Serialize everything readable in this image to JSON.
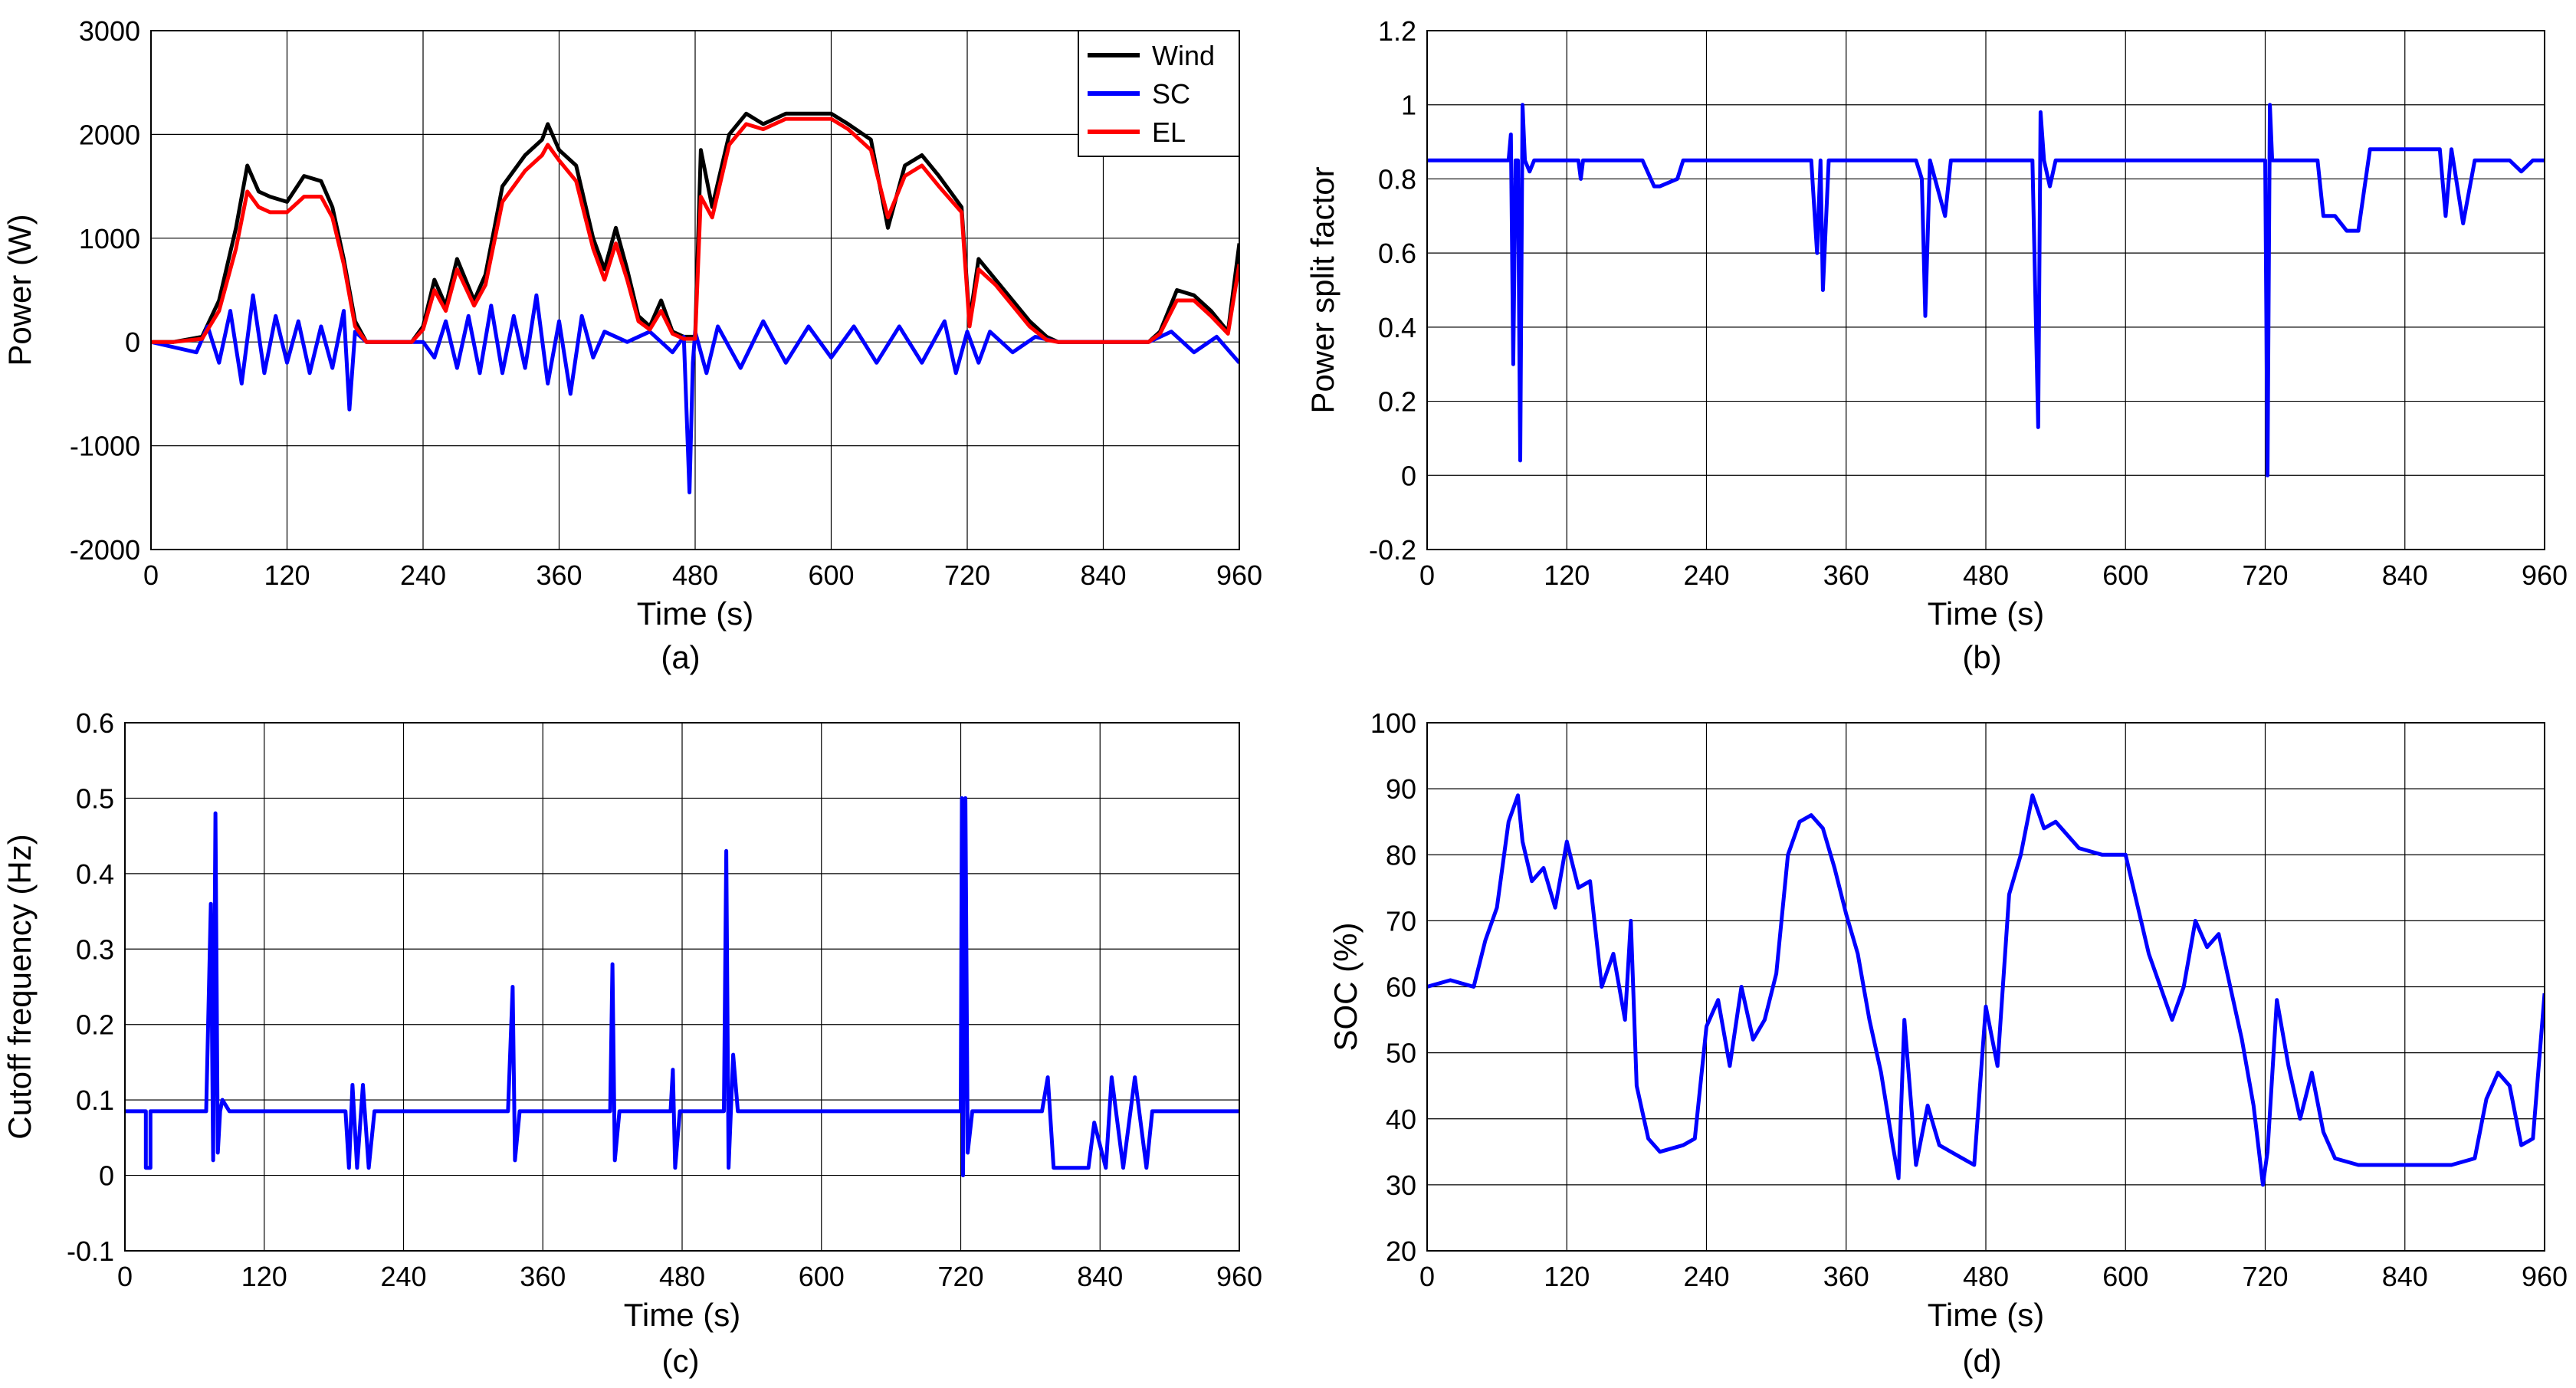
{
  "figure": {
    "background": "#ffffff"
  },
  "chart_data": [
    {
      "id": "a",
      "type": "line",
      "caption": "(a)",
      "xlabel": "Time (s)",
      "ylabel": "Power (W)",
      "xlim": [
        0,
        960
      ],
      "ylim": [
        -2000,
        3000
      ],
      "xticks": [
        0,
        120,
        240,
        360,
        480,
        600,
        720,
        840,
        960
      ],
      "yticks": [
        -2000,
        -1000,
        0,
        1000,
        2000,
        3000
      ],
      "grid": true,
      "legend": {
        "position": "top-right"
      },
      "series": [
        {
          "name": "Wind",
          "color": "#000000",
          "x": [
            0,
            20,
            45,
            60,
            75,
            85,
            95,
            105,
            120,
            135,
            150,
            160,
            170,
            180,
            190,
            200,
            230,
            240,
            250,
            260,
            270,
            285,
            295,
            310,
            330,
            345,
            350,
            360,
            375,
            390,
            400,
            410,
            420,
            430,
            440,
            450,
            460,
            470,
            480,
            485,
            495,
            510,
            525,
            540,
            560,
            580,
            600,
            615,
            635,
            650,
            665,
            680,
            695,
            715,
            722,
            730,
            745,
            760,
            775,
            790,
            800,
            820,
            880,
            890,
            905,
            920,
            935,
            950,
            960
          ],
          "y": [
            0,
            0,
            50,
            400,
            1100,
            1700,
            1450,
            1400,
            1350,
            1600,
            1550,
            1300,
            800,
            200,
            0,
            0,
            0,
            150,
            600,
            350,
            800,
            400,
            650,
            1500,
            1800,
            1950,
            2100,
            1850,
            1700,
            1000,
            700,
            1100,
            700,
            250,
            150,
            400,
            100,
            50,
            50,
            1850,
            1300,
            2000,
            2200,
            2100,
            2200,
            2200,
            2200,
            2100,
            1950,
            1100,
            1700,
            1800,
            1600,
            1300,
            200,
            800,
            600,
            400,
            200,
            50,
            0,
            0,
            0,
            100,
            500,
            450,
            300,
            100,
            950
          ]
        },
        {
          "name": "SC",
          "color": "#0000ff",
          "x": [
            0,
            20,
            40,
            50,
            60,
            70,
            80,
            90,
            100,
            110,
            120,
            130,
            140,
            150,
            160,
            170,
            175,
            180,
            190,
            240,
            250,
            260,
            270,
            280,
            290,
            300,
            310,
            320,
            330,
            340,
            350,
            360,
            370,
            380,
            390,
            400,
            420,
            440,
            460,
            470,
            475,
            478,
            480,
            490,
            500,
            520,
            540,
            560,
            580,
            600,
            620,
            640,
            660,
            680,
            700,
            710,
            720,
            730,
            740,
            760,
            780,
            800,
            880,
            900,
            920,
            940,
            960
          ],
          "y": [
            0,
            -50,
            -100,
            150,
            -200,
            300,
            -400,
            450,
            -300,
            250,
            -200,
            200,
            -300,
            150,
            -250,
            300,
            -650,
            100,
            0,
            0,
            -150,
            200,
            -250,
            250,
            -300,
            350,
            -300,
            250,
            -250,
            450,
            -400,
            200,
            -500,
            250,
            -150,
            100,
            0,
            100,
            -100,
            50,
            -1450,
            -200,
            100,
            -300,
            150,
            -250,
            200,
            -200,
            150,
            -150,
            150,
            -200,
            150,
            -200,
            200,
            -300,
            100,
            -200,
            100,
            -100,
            50,
            0,
            0,
            100,
            -100,
            50,
            -200
          ]
        },
        {
          "name": "EL",
          "color": "#ff0000",
          "x": [
            0,
            20,
            45,
            60,
            75,
            85,
            95,
            105,
            120,
            135,
            150,
            160,
            170,
            180,
            190,
            200,
            230,
            240,
            250,
            260,
            270,
            285,
            295,
            310,
            330,
            345,
            350,
            360,
            375,
            390,
            400,
            410,
            420,
            430,
            440,
            450,
            460,
            470,
            480,
            485,
            495,
            510,
            525,
            540,
            560,
            580,
            600,
            615,
            635,
            650,
            665,
            680,
            695,
            715,
            722,
            730,
            745,
            760,
            775,
            790,
            800,
            820,
            880,
            890,
            905,
            920,
            935,
            950,
            960
          ],
          "y": [
            0,
            0,
            30,
            300,
            900,
            1450,
            1300,
            1250,
            1250,
            1400,
            1400,
            1200,
            750,
            150,
            0,
            0,
            0,
            120,
            500,
            300,
            700,
            350,
            550,
            1350,
            1650,
            1800,
            1900,
            1750,
            1550,
            900,
            600,
            950,
            600,
            200,
            120,
            300,
            80,
            30,
            30,
            1400,
            1200,
            1900,
            2100,
            2050,
            2150,
            2150,
            2150,
            2050,
            1850,
            1200,
            1600,
            1700,
            1500,
            1250,
            150,
            700,
            550,
            350,
            150,
            20,
            0,
            0,
            0,
            80,
            400,
            400,
            250,
            80,
            750
          ]
        }
      ]
    },
    {
      "id": "b",
      "type": "line",
      "caption": "(b)",
      "xlabel": "Time (s)",
      "ylabel": "Power split factor",
      "xlim": [
        0,
        960
      ],
      "ylim": [
        -0.2,
        1.2
      ],
      "xticks": [
        0,
        120,
        240,
        360,
        480,
        600,
        720,
        840,
        960
      ],
      "yticks": [
        -0.2,
        0,
        0.2,
        0.4,
        0.6,
        0.8,
        1,
        1.2
      ],
      "grid": true,
      "series": [
        {
          "color": "#0000ff",
          "x": [
            0,
            70,
            72,
            74,
            76,
            78,
            80,
            82,
            84,
            88,
            92,
            130,
            132,
            134,
            140,
            185,
            195,
            200,
            215,
            220,
            225,
            330,
            335,
            338,
            340,
            345,
            420,
            425,
            428,
            432,
            445,
            450,
            520,
            525,
            527,
            530,
            535,
            540,
            600,
            720,
            722,
            724,
            726,
            730,
            765,
            770,
            780,
            790,
            800,
            810,
            830,
            870,
            875,
            880,
            890,
            900,
            930,
            940,
            950,
            960
          ],
          "y": [
            0.85,
            0.85,
            0.92,
            0.3,
            0.85,
            0.85,
            0.04,
            1.0,
            0.85,
            0.82,
            0.85,
            0.85,
            0.8,
            0.85,
            0.85,
            0.85,
            0.78,
            0.78,
            0.8,
            0.85,
            0.85,
            0.85,
            0.6,
            0.85,
            0.5,
            0.85,
            0.85,
            0.8,
            0.43,
            0.85,
            0.7,
            0.85,
            0.85,
            0.13,
            0.98,
            0.85,
            0.78,
            0.85,
            0.85,
            0.85,
            0.0,
            1.0,
            0.85,
            0.85,
            0.85,
            0.7,
            0.7,
            0.66,
            0.66,
            0.88,
            0.88,
            0.88,
            0.7,
            0.88,
            0.68,
            0.85,
            0.85,
            0.82,
            0.85,
            0.85
          ]
        }
      ]
    },
    {
      "id": "c",
      "type": "line",
      "caption": "(c)",
      "xlabel": "Time (s)",
      "ylabel": "Cutoff frequency (Hz)",
      "xlim": [
        0,
        960
      ],
      "ylim": [
        -0.1,
        0.6
      ],
      "xticks": [
        0,
        120,
        240,
        360,
        480,
        600,
        720,
        840,
        960
      ],
      "yticks": [
        -0.1,
        0,
        0.1,
        0.2,
        0.3,
        0.4,
        0.5,
        0.6
      ],
      "grid": true,
      "series": [
        {
          "color": "#0000ff",
          "x": [
            0,
            18,
            18,
            22,
            22,
            70,
            74,
            76,
            78,
            80,
            82,
            84,
            90,
            190,
            193,
            196,
            200,
            205,
            210,
            215,
            330,
            334,
            336,
            340,
            418,
            420,
            422,
            426,
            470,
            472,
            474,
            478,
            516,
            518,
            520,
            524,
            528,
            720,
            721,
            722,
            724,
            726,
            730,
            790,
            795,
            800,
            830,
            835,
            845,
            850,
            860,
            870,
            880,
            885,
            890,
            960
          ],
          "y": [
            0.085,
            0.085,
            0.01,
            0.01,
            0.085,
            0.085,
            0.36,
            0.02,
            0.48,
            0.03,
            0.085,
            0.1,
            0.085,
            0.085,
            0.01,
            0.12,
            0.01,
            0.12,
            0.01,
            0.085,
            0.085,
            0.25,
            0.02,
            0.085,
            0.085,
            0.28,
            0.02,
            0.085,
            0.085,
            0.14,
            0.01,
            0.085,
            0.085,
            0.43,
            0.01,
            0.16,
            0.085,
            0.085,
            0.5,
            0.0,
            0.5,
            0.03,
            0.085,
            0.085,
            0.13,
            0.01,
            0.01,
            0.07,
            0.01,
            0.13,
            0.01,
            0.13,
            0.01,
            0.085,
            0.085,
            0.085
          ]
        }
      ]
    },
    {
      "id": "d",
      "type": "line",
      "caption": "(d)",
      "xlabel": "Time (s)",
      "ylabel": "SOC (%)",
      "xlim": [
        0,
        960
      ],
      "ylim": [
        20,
        100
      ],
      "xticks": [
        0,
        120,
        240,
        360,
        480,
        600,
        720,
        840,
        960
      ],
      "yticks": [
        20,
        30,
        40,
        50,
        60,
        70,
        80,
        90,
        100
      ],
      "grid": true,
      "series": [
        {
          "color": "#0000ff",
          "x": [
            0,
            20,
            40,
            50,
            60,
            70,
            78,
            82,
            90,
            100,
            110,
            120,
            130,
            140,
            150,
            160,
            170,
            175,
            180,
            190,
            200,
            220,
            230,
            240,
            250,
            260,
            270,
            280,
            290,
            300,
            310,
            320,
            330,
            340,
            350,
            360,
            370,
            380,
            390,
            400,
            405,
            410,
            420,
            430,
            440,
            460,
            470,
            480,
            490,
            500,
            510,
            520,
            530,
            540,
            560,
            580,
            600,
            620,
            640,
            650,
            660,
            670,
            680,
            690,
            700,
            710,
            718,
            722,
            730,
            740,
            750,
            760,
            770,
            780,
            800,
            840,
            880,
            900,
            910,
            920,
            930,
            940,
            950,
            960
          ],
          "y": [
            60,
            61,
            60,
            67,
            72,
            85,
            89,
            82,
            76,
            78,
            72,
            82,
            75,
            76,
            60,
            65,
            55,
            70,
            45,
            37,
            35,
            36,
            37,
            54,
            58,
            48,
            60,
            52,
            55,
            62,
            80,
            85,
            86,
            84,
            78,
            71,
            65,
            55,
            47,
            36,
            31,
            55,
            33,
            42,
            36,
            34,
            33,
            57,
            48,
            74,
            80,
            89,
            84,
            85,
            81,
            80,
            80,
            65,
            55,
            60,
            70,
            66,
            68,
            60,
            52,
            42,
            30,
            35,
            58,
            48,
            40,
            47,
            38,
            34,
            33,
            33,
            33,
            34,
            43,
            47,
            45,
            36,
            37,
            59
          ]
        }
      ]
    }
  ]
}
